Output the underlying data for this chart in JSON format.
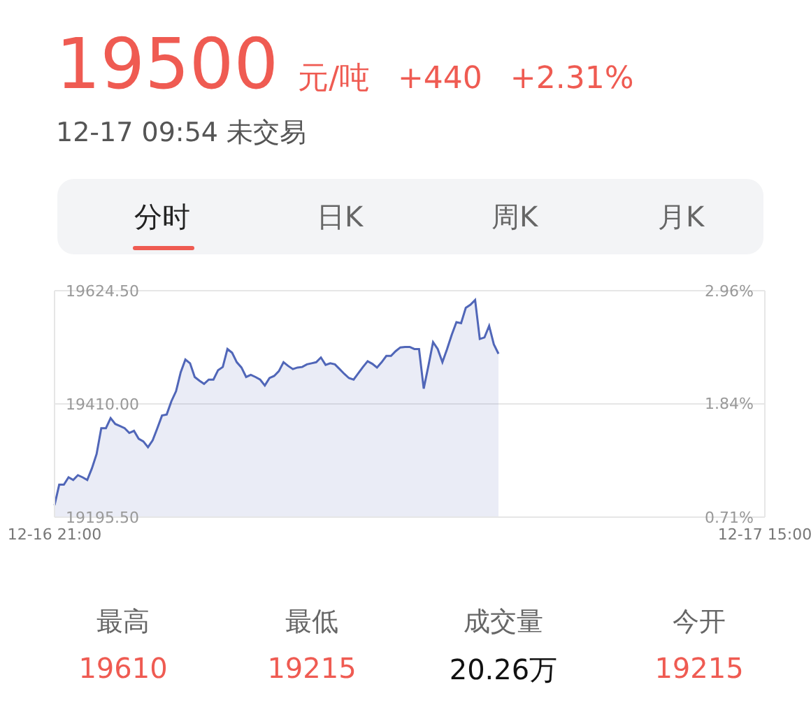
{
  "chart_data": {
    "type": "area",
    "title": "19500",
    "annotations": [
      "元/吨",
      "+440",
      "+2.31%",
      "12-17 09:54 未交易",
      "分时",
      "日K",
      "周K",
      "月K",
      "最高",
      "19610",
      "最低",
      "19215",
      "成交量",
      "20.26万",
      "今开",
      "19215"
    ],
    "categories": [
      "12-16 21:00",
      null,
      null,
      null,
      null,
      null,
      null,
      null,
      null,
      null,
      null,
      null,
      null,
      null,
      null,
      null,
      null,
      null,
      null,
      null,
      null,
      null,
      null,
      null,
      null,
      null,
      null,
      null,
      null,
      null,
      null,
      null,
      null,
      null,
      null,
      null,
      null,
      null,
      null,
      null,
      null,
      null,
      null,
      null,
      null,
      null,
      null,
      null,
      null,
      null,
      null,
      null,
      null,
      null,
      null,
      null,
      null,
      null,
      null,
      null,
      null,
      null,
      null,
      null,
      null,
      null,
      null,
      null,
      null,
      null,
      null,
      null,
      null,
      null,
      null,
      null,
      null,
      null,
      null,
      null,
      null,
      null,
      null,
      null,
      null,
      null,
      null,
      null,
      null,
      null,
      null,
      null,
      null,
      null,
      null,
      null,
      null,
      null,
      null,
      null,
      null,
      null,
      null,
      null,
      null,
      null,
      null,
      null,
      null,
      null,
      null,
      null,
      null,
      null,
      null,
      null,
      null,
      null,
      null,
      null,
      null,
      null,
      null,
      null,
      null,
      null,
      null,
      null,
      null,
      null,
      null,
      null,
      null,
      null,
      null,
      null,
      null,
      null,
      null,
      null,
      null,
      null,
      null,
      null,
      null,
      null,
      null,
      null,
      null,
      null,
      null,
      null,
      "12-17 15:00"
    ],
    "series": [
      {
        "color": "#5066b8",
        "values": [
          19218,
          19257,
          19257,
          19271,
          19266,
          19275,
          19271,
          19266,
          19288,
          19315,
          19364,
          19364,
          19383,
          19372,
          19368,
          19364,
          19355,
          19359,
          19344,
          19339,
          19328,
          19341,
          19364,
          19388,
          19390,
          19415,
          19434,
          19470,
          19494,
          19487,
          19461,
          19454,
          19448,
          19456,
          19456,
          19474,
          19480,
          19514,
          19507,
          19489,
          19479,
          19461,
          19465,
          19461,
          19456,
          19445,
          19459,
          19463,
          19472,
          19489,
          19482,
          19476,
          19479,
          19480,
          19485,
          19487,
          19489,
          19498,
          19484,
          19487,
          19485,
          19476,
          19467,
          19459,
          19456,
          19468,
          19480,
          19491,
          19486,
          19479,
          19489,
          19501,
          19501,
          19510,
          19517,
          19518,
          19518,
          19514,
          19514,
          19439,
          19482,
          19527,
          19514,
          19489,
          19514,
          19541,
          19565,
          19563,
          19592,
          19598,
          19607,
          19533,
          19536,
          19558,
          19523,
          19505,
          null,
          null,
          null,
          null,
          null,
          null,
          null,
          null,
          null,
          null,
          null,
          null,
          null,
          null,
          null,
          null,
          null,
          null,
          null,
          null,
          null,
          null,
          null,
          null,
          null,
          null,
          null,
          null,
          null,
          null,
          null,
          null,
          null,
          null,
          null,
          null,
          null,
          null,
          null,
          null,
          null,
          null,
          null,
          null,
          null,
          null,
          null,
          null,
          null,
          null,
          null,
          null,
          null,
          null,
          null,
          null,
          null
        ]
      }
    ],
    "ylim": [
      19195.5,
      19624.5
    ],
    "yticks": [
      {
        "value": 19195.5,
        "label": "19195.50"
      },
      {
        "value": 19410,
        "label": "19410.00"
      },
      {
        "value": 19624.5,
        "label": "19624.50"
      }
    ],
    "y2lim": [
      0.71,
      2.96
    ],
    "y2ticks": [
      {
        "value": 0.71,
        "label": "0.71%"
      },
      {
        "value": 1.84,
        "label": "1.84%"
      },
      {
        "value": 2.96,
        "label": "2.96%"
      }
    ],
    "grid": "y"
  }
}
